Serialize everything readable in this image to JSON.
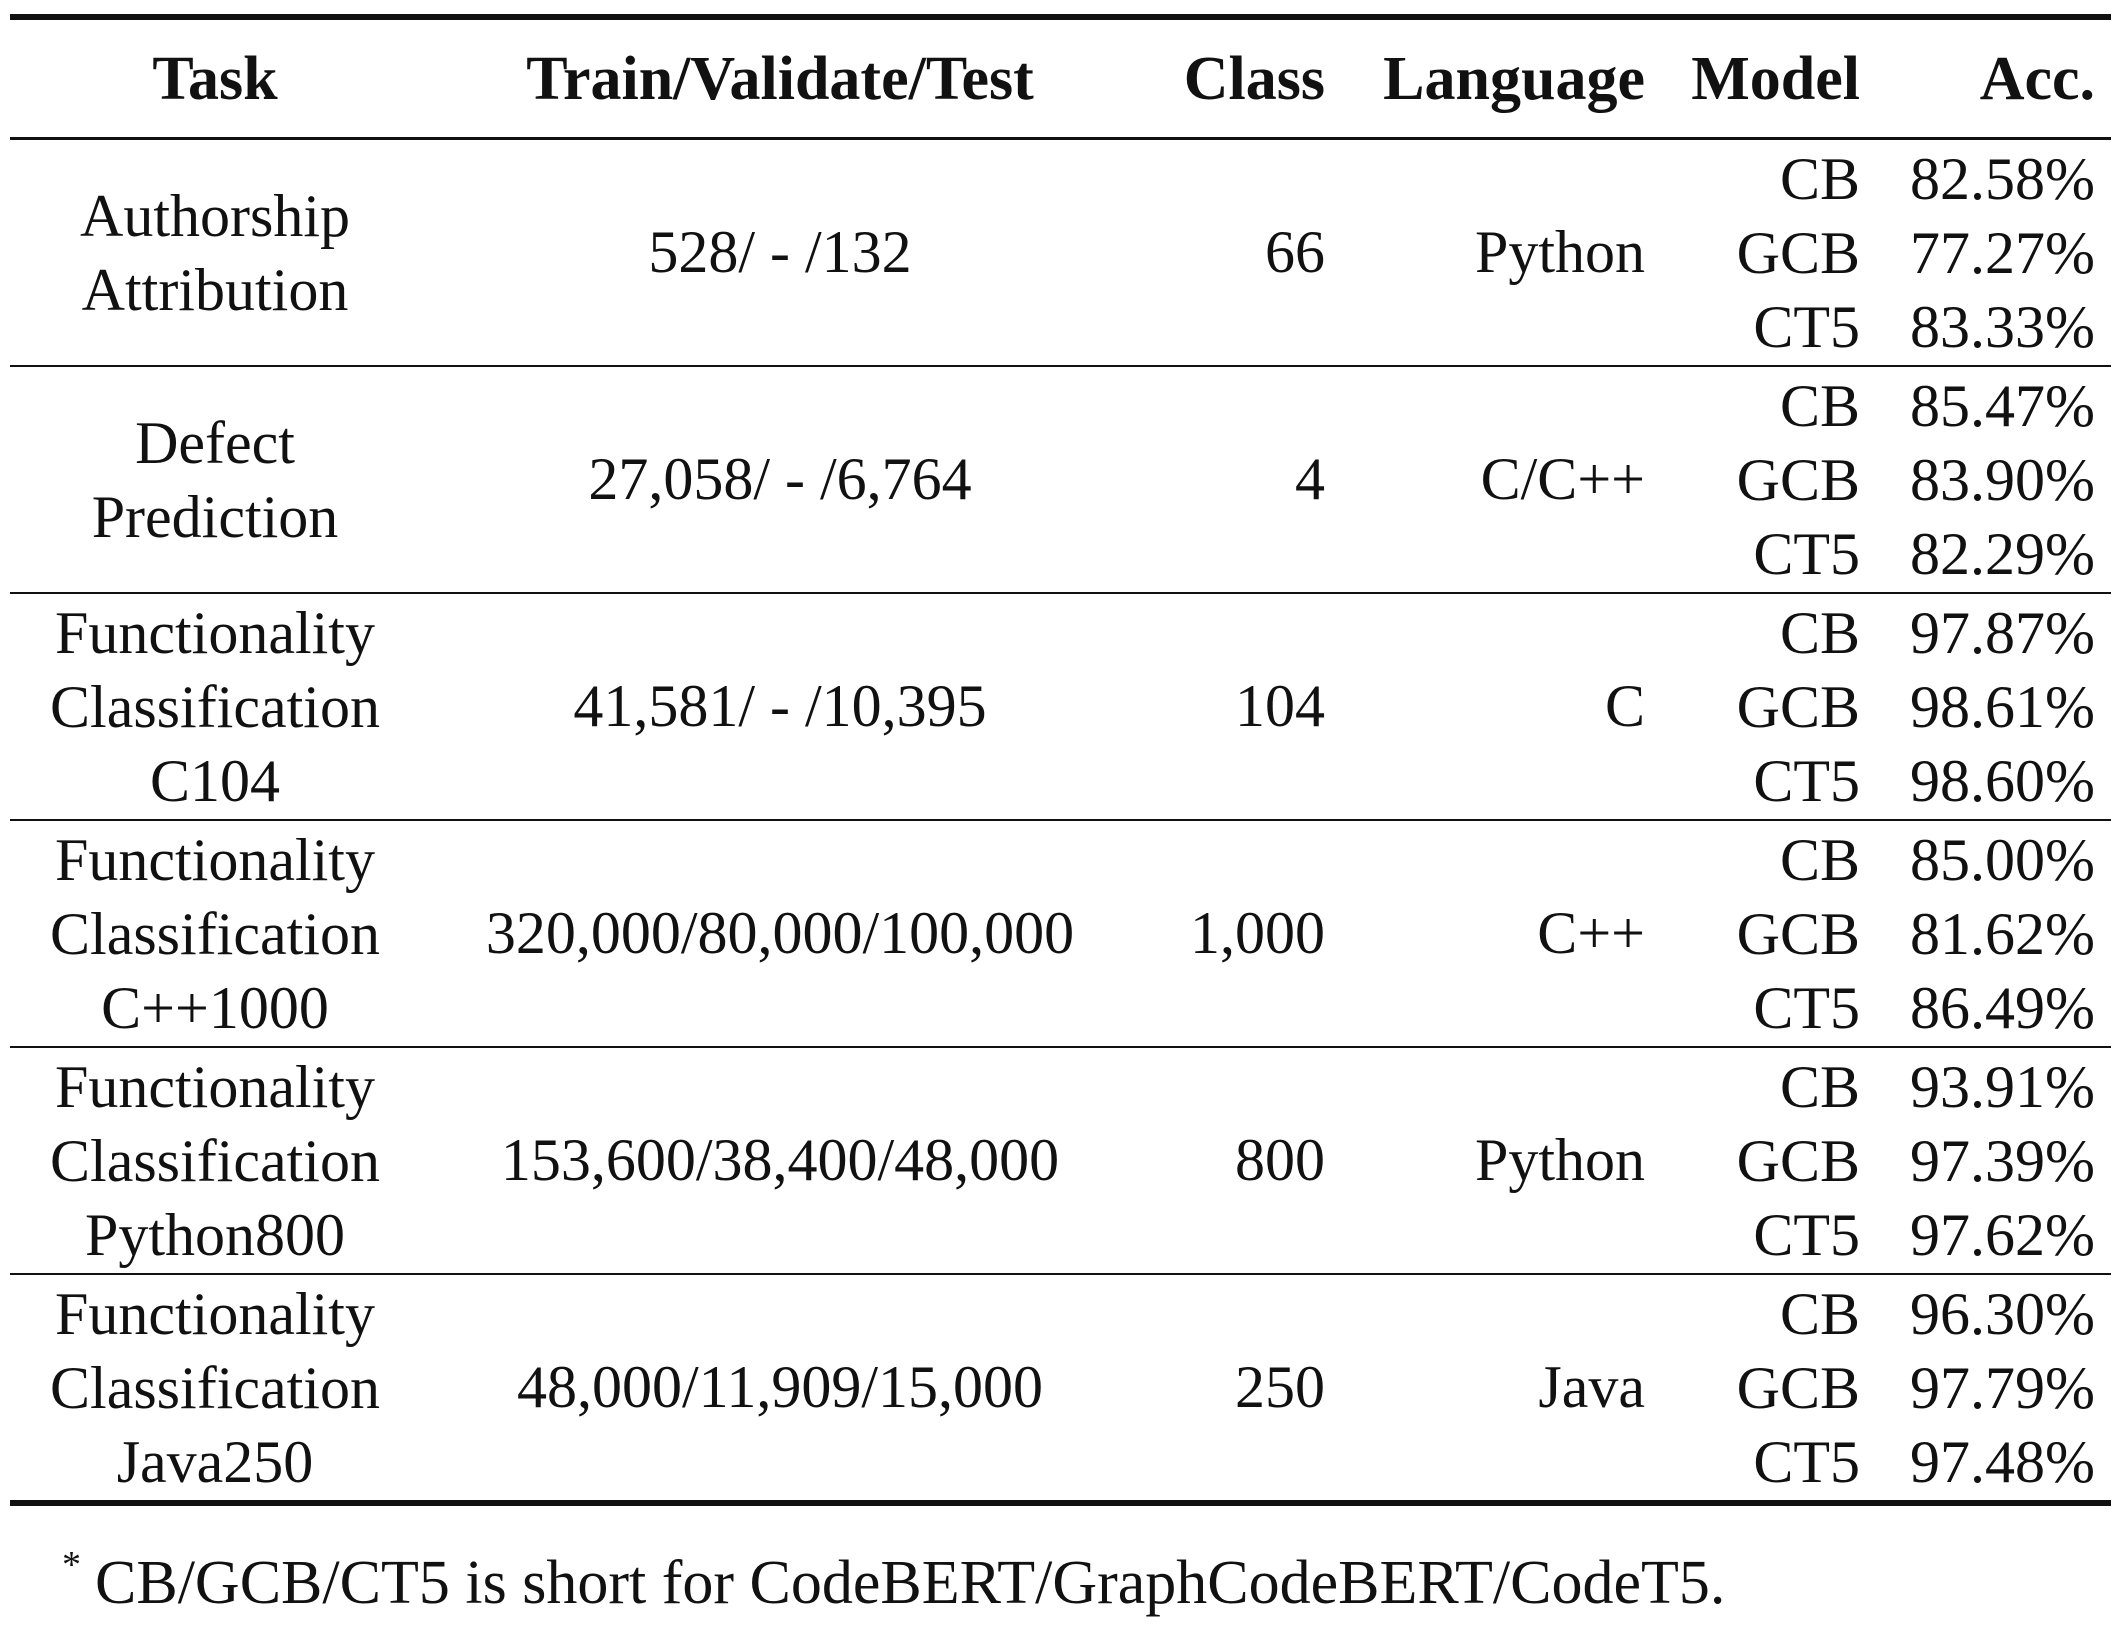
{
  "table": {
    "headers": {
      "task": "Task",
      "split": "Train/Validate/Test",
      "class": "Class",
      "language": "Language",
      "model": "Model",
      "acc": "Acc."
    },
    "groups": [
      {
        "task_lines": [
          "Authorship",
          "Attribution"
        ],
        "split": "528/ - /132",
        "class": "66",
        "language": "Python",
        "models": [
          "CB",
          "GCB",
          "CT5"
        ],
        "acc": [
          "82.58%",
          "77.27%",
          "83.33%"
        ]
      },
      {
        "task_lines": [
          "Defect",
          "Prediction"
        ],
        "split": "27,058/ - /6,764",
        "class": "4",
        "language": "C/C++",
        "models": [
          "CB",
          "GCB",
          "CT5"
        ],
        "acc": [
          "85.47%",
          "83.90%",
          "82.29%"
        ]
      },
      {
        "task_lines": [
          "Functionality",
          "Classification",
          "C104"
        ],
        "split": "41,581/ - /10,395",
        "class": "104",
        "language": "C",
        "models": [
          "CB",
          "GCB",
          "CT5"
        ],
        "acc": [
          "97.87%",
          "98.61%",
          "98.60%"
        ]
      },
      {
        "task_lines": [
          "Functionality",
          "Classification",
          "C++1000"
        ],
        "split": "320,000/80,000/100,000",
        "class": "1,000",
        "language": "C++",
        "models": [
          "CB",
          "GCB",
          "CT5"
        ],
        "acc": [
          "85.00%",
          "81.62%",
          "86.49%"
        ]
      },
      {
        "task_lines": [
          "Functionality",
          "Classification",
          "Python800"
        ],
        "split": "153,600/38,400/48,000",
        "class": "800",
        "language": "Python",
        "models": [
          "CB",
          "GCB",
          "CT5"
        ],
        "acc": [
          "93.91%",
          "97.39%",
          "97.62%"
        ]
      },
      {
        "task_lines": [
          "Functionality",
          "Classification",
          "Java250"
        ],
        "split": "48,000/11,909/15,000",
        "class": "250",
        "language": "Java",
        "models": [
          "CB",
          "GCB",
          "CT5"
        ],
        "acc": [
          "96.30%",
          "97.79%",
          "97.48%"
        ]
      }
    ]
  },
  "footnote": {
    "marker": "*",
    "text": "CB/GCB/CT5 is short for CodeBERT/GraphCodeBERT/CodeT5."
  }
}
